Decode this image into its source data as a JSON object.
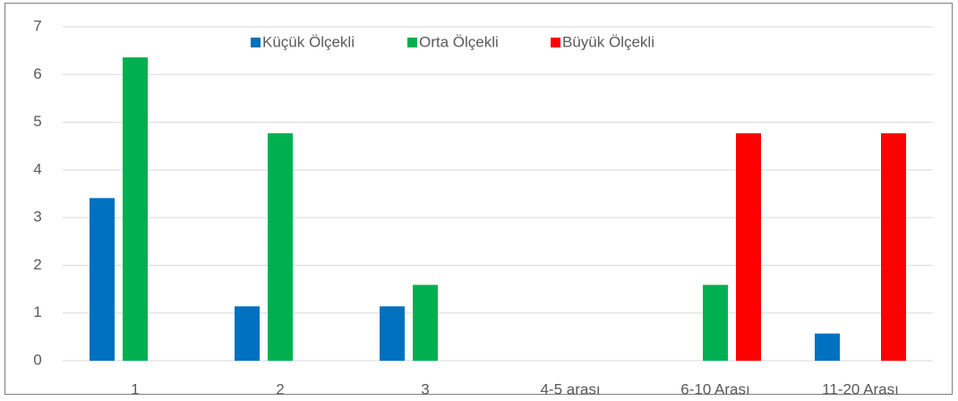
{
  "chart_data": {
    "type": "bar",
    "categories": [
      "1",
      "2",
      "3",
      "4-5 arası",
      "6-10 Arası",
      "11-20 Arası"
    ],
    "series": [
      {
        "name": "Küçük Ölçekli",
        "color": "#0070c0",
        "values": [
          3.41,
          1.14,
          1.14,
          0,
          0,
          0.57
        ]
      },
      {
        "name": "Orta Ölçekli",
        "color": "#00b050",
        "values": [
          6.36,
          4.77,
          1.59,
          0,
          1.59,
          0
        ]
      },
      {
        "name": "Büyük Ölçekli",
        "color": "#ff0000",
        "values": [
          0,
          0,
          0,
          0,
          4.77,
          4.77
        ]
      }
    ],
    "ylim": [
      0,
      7
    ],
    "yticks": [
      0,
      1,
      2,
      3,
      4,
      5,
      6,
      7
    ],
    "grid": true,
    "legend": "top"
  }
}
